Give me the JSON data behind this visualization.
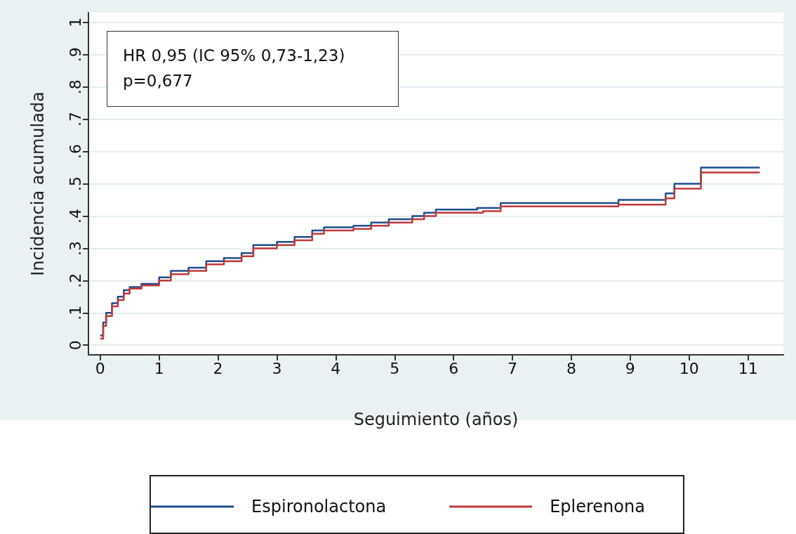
{
  "chart_data": {
    "type": "step",
    "xlabel": "Seguimiento (años)",
    "ylabel": "Incidencia acumulada",
    "annotations": [
      "HR 0,95 (IC 95% 0,73-1,23)\np=0,677"
    ],
    "xlim": [
      -0.2,
      11.6
    ],
    "xticks": [
      0,
      1,
      2,
      3,
      4,
      5,
      6,
      7,
      8,
      9,
      10,
      11
    ],
    "ylim": [
      -0.03,
      1.03
    ],
    "yticks": [
      0,
      {
        "value": 0.1,
        "label": ".1"
      },
      {
        "value": 0.2,
        "label": ".2"
      },
      {
        "value": 0.3,
        "label": ".3"
      },
      {
        "value": 0.4,
        "label": ".4"
      },
      {
        "value": 0.5,
        "label": ".5"
      },
      {
        "value": 0.6,
        "label": ".6"
      },
      {
        "value": 0.7,
        "label": ".7"
      },
      {
        "value": 0.8,
        "label": ".8"
      },
      {
        "value": 0.9,
        "label": ".9"
      },
      1
    ],
    "grid": "y",
    "legend": "bottom",
    "line_style": "solid",
    "marker": "none",
    "series": [
      {
        "name": "Espironolactona",
        "color": "#1f4e8c",
        "x": [
          0,
          0.05,
          0.1,
          0.2,
          0.3,
          0.4,
          0.5,
          0.7,
          1.0,
          1.2,
          1.5,
          1.8,
          2.1,
          2.4,
          2.6,
          3.0,
          3.3,
          3.6,
          3.8,
          4.3,
          4.6,
          4.9,
          5.3,
          5.5,
          5.7,
          6.4,
          6.8,
          8.8,
          9.6,
          9.75,
          10.2,
          11.2
        ],
        "values": [
          0.03,
          0.07,
          0.1,
          0.13,
          0.15,
          0.17,
          0.18,
          0.19,
          0.21,
          0.23,
          0.24,
          0.26,
          0.27,
          0.285,
          0.31,
          0.32,
          0.335,
          0.355,
          0.365,
          0.37,
          0.38,
          0.39,
          0.4,
          0.41,
          0.42,
          0.425,
          0.44,
          0.45,
          0.47,
          0.5,
          0.55,
          0.55
        ]
      },
      {
        "name": "Eplerenona",
        "color": "#c0393b",
        "x": [
          0,
          0.05,
          0.1,
          0.2,
          0.3,
          0.4,
          0.5,
          0.7,
          1.0,
          1.2,
          1.5,
          1.8,
          2.1,
          2.4,
          2.6,
          3.0,
          3.3,
          3.6,
          3.8,
          4.3,
          4.6,
          4.9,
          5.3,
          5.5,
          5.7,
          6.5,
          6.8,
          8.8,
          9.6,
          9.75,
          10.2,
          11.2
        ],
        "values": [
          0.02,
          0.06,
          0.09,
          0.12,
          0.14,
          0.16,
          0.175,
          0.185,
          0.2,
          0.22,
          0.23,
          0.25,
          0.26,
          0.275,
          0.3,
          0.31,
          0.325,
          0.345,
          0.355,
          0.36,
          0.37,
          0.38,
          0.39,
          0.4,
          0.41,
          0.415,
          0.43,
          0.435,
          0.455,
          0.485,
          0.535,
          0.535
        ]
      }
    ]
  }
}
